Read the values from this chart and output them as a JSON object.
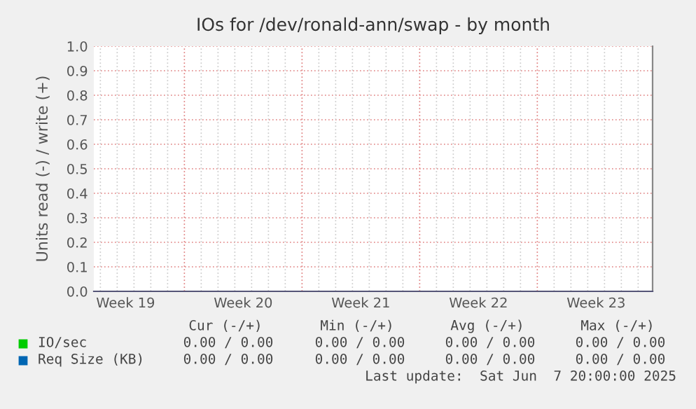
{
  "chart_data": {
    "type": "line",
    "title": "IOs for /dev/ronald-ann/swap - by month",
    "ylabel": "Units read (-) / write (+)",
    "categories": [
      "Week 19",
      "Week 20",
      "Week 21",
      "Week 22",
      "Week 23"
    ],
    "series": [
      {
        "name": "IO/sec",
        "color": "#00cc00",
        "values": [
          null,
          null,
          null,
          null,
          null
        ]
      },
      {
        "name": "Req Size (KB)",
        "color": "#0066b3",
        "values": [
          null,
          null,
          null,
          null,
          null
        ]
      }
    ],
    "ylim": [
      0,
      1.0
    ],
    "yticks": [
      {
        "value": 0,
        "label": "0.0"
      },
      {
        "value": 0.1,
        "label": "0.1"
      },
      {
        "value": 0.2,
        "label": "0.2"
      },
      {
        "value": 0.3,
        "label": "0.3"
      },
      {
        "value": 0.4,
        "label": "0.4"
      },
      {
        "value": 0.5,
        "label": "0.5"
      },
      {
        "value": 0.6,
        "label": "0.6"
      },
      {
        "value": 0.7,
        "label": "0.7"
      },
      {
        "value": 0.8,
        "label": "0.8"
      },
      {
        "value": 0.9,
        "label": "0.9"
      },
      {
        "value": 1.0,
        "label": "1.0"
      }
    ],
    "grid": true,
    "legend": "bottom",
    "annotations": [
      "Cur (-/+)",
      "Min (-/+)",
      "Avg (-/+)",
      "Max (-/+)",
      "0.00 / 0.00",
      "0.00 / 0.00",
      "0.00 / 0.00",
      "0.00 / 0.00",
      "0.00 / 0.00",
      "0.00 / 0.00",
      "0.00 / 0.00",
      "0.00 / 0.00",
      "Last update:  Sat Jun  7 20:00:00 2025"
    ]
  }
}
